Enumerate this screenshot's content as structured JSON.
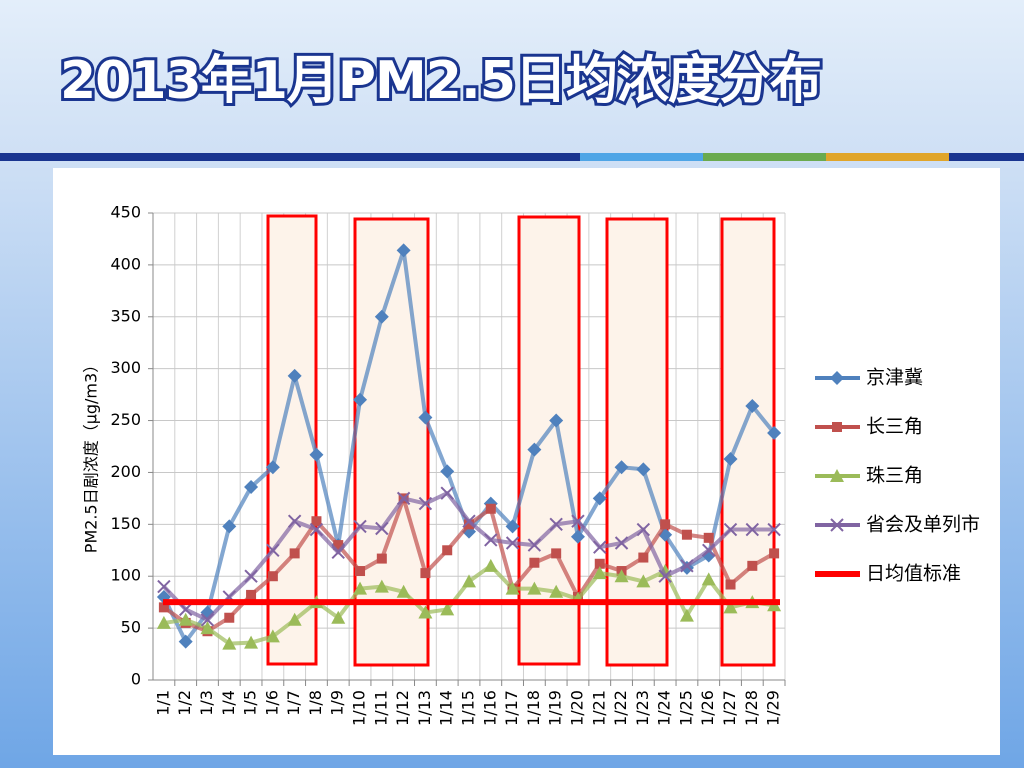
{
  "chart_data": {
    "type": "line",
    "title": "2013年1月PM2.5日均浓度分布",
    "y_label": "PM2.5日剧浓度（μg/m3）",
    "categories": [
      "1/1",
      "1/2",
      "1/3",
      "1/4",
      "1/5",
      "1/6",
      "1/7",
      "1/8",
      "1/9",
      "1/10",
      "1/11",
      "1/12",
      "1/13",
      "1/14",
      "1/15",
      "1/16",
      "1/17",
      "1/18",
      "1/19",
      "1/20",
      "1/21",
      "1/22",
      "1/23",
      "1/24",
      "1/25",
      "1/26",
      "1/27",
      "1/28",
      "1/29"
    ],
    "series": [
      {
        "name": "京津冀",
        "color": "#4f81bd",
        "marker": "diamond",
        "values": [
          80,
          37,
          65,
          148,
          186,
          205,
          293,
          217,
          130,
          270,
          350,
          414,
          253,
          201,
          143,
          170,
          148,
          222,
          250,
          138,
          175,
          205,
          203,
          140,
          108,
          120,
          213,
          264,
          238
        ]
      },
      {
        "name": "长三角",
        "color": "#c0504d",
        "marker": "square",
        "values": [
          70,
          55,
          47,
          60,
          82,
          100,
          122,
          153,
          130,
          105,
          117,
          175,
          103,
          125,
          150,
          165,
          88,
          113,
          122,
          80,
          112,
          105,
          118,
          150,
          140,
          137,
          92,
          110,
          122
        ]
      },
      {
        "name": "珠三角",
        "color": "#9bbb59",
        "marker": "triangle",
        "values": [
          55,
          58,
          50,
          35,
          36,
          42,
          58,
          75,
          60,
          88,
          90,
          85,
          65,
          68,
          95,
          110,
          88,
          88,
          85,
          78,
          103,
          100,
          95,
          105,
          62,
          97,
          70,
          75,
          72
        ]
      },
      {
        "name": "省会及单列市",
        "color": "#8064a2",
        "marker": "x",
        "values": [
          90,
          68,
          58,
          80,
          100,
          125,
          153,
          145,
          123,
          148,
          146,
          175,
          170,
          180,
          153,
          135,
          132,
          130,
          150,
          153,
          128,
          132,
          145,
          100,
          110,
          125,
          145,
          145,
          145
        ]
      }
    ],
    "reference_line": {
      "name": "日均值标准",
      "value": 75,
      "color": "#ff0000"
    },
    "ylim": [
      0,
      450
    ],
    "yticks": [
      0,
      50,
      100,
      150,
      200,
      250,
      300,
      350,
      400,
      450
    ],
    "grid": true
  }
}
